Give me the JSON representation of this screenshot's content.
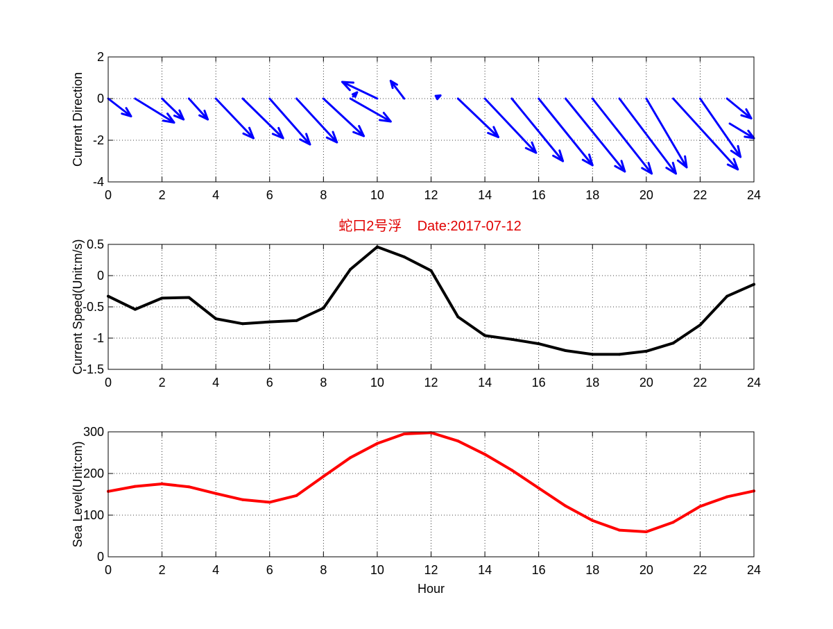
{
  "figure": {
    "title": "蛇口2号浮    Date:2017-07-12",
    "colors": {
      "title": "#e00000",
      "arrows": "#0000ff",
      "speed": "#000000",
      "sea_level": "#ff0000",
      "grid": "#000000"
    }
  },
  "chart_data": [
    {
      "type": "quiver",
      "ylabel": "Current Direction",
      "xlim": [
        0,
        24
      ],
      "ylim": [
        -4,
        2
      ],
      "xticks": [
        0,
        2,
        4,
        6,
        8,
        10,
        12,
        14,
        16,
        18,
        20,
        22,
        24
      ],
      "yticks": [
        2,
        0,
        -2,
        -4
      ],
      "grid": true,
      "color": "#0000ff",
      "vectors": [
        {
          "x": 0,
          "y": 0,
          "u": 0.85,
          "v": -0.85
        },
        {
          "x": 1,
          "y": 0,
          "u": 1.45,
          "v": -1.15
        },
        {
          "x": 2,
          "y": 0,
          "u": 0.8,
          "v": -1.0
        },
        {
          "x": 3,
          "y": 0,
          "u": 0.7,
          "v": -1.0
        },
        {
          "x": 4,
          "y": 0,
          "u": 1.4,
          "v": -1.9
        },
        {
          "x": 5,
          "y": 0,
          "u": 1.5,
          "v": -1.9
        },
        {
          "x": 6,
          "y": 0,
          "u": 1.5,
          "v": -2.2
        },
        {
          "x": 7,
          "y": 0,
          "u": 1.5,
          "v": -2.1
        },
        {
          "x": 8,
          "y": 0,
          "u": 1.5,
          "v": -1.8
        },
        {
          "x": 9,
          "y": 0,
          "u": 1.5,
          "v": -1.1
        },
        {
          "x": 9.1,
          "y": 0.1,
          "u": 0.15,
          "v": 0.2
        },
        {
          "x": 10,
          "y": 0,
          "u": -1.3,
          "v": 0.8
        },
        {
          "x": 11,
          "y": 0,
          "u": -0.5,
          "v": 0.85
        },
        {
          "x": 12.2,
          "y": 0.05,
          "u": 0.15,
          "v": 0.1
        },
        {
          "x": 13,
          "y": 0,
          "u": 1.5,
          "v": -1.85
        },
        {
          "x": 14,
          "y": 0,
          "u": 1.9,
          "v": -2.6
        },
        {
          "x": 15,
          "y": 0,
          "u": 1.9,
          "v": -3.0
        },
        {
          "x": 16,
          "y": 0,
          "u": 2.0,
          "v": -3.2
        },
        {
          "x": 17,
          "y": 0,
          "u": 2.2,
          "v": -3.5
        },
        {
          "x": 18,
          "y": 0,
          "u": 2.2,
          "v": -3.6
        },
        {
          "x": 19,
          "y": 0,
          "u": 2.1,
          "v": -3.6
        },
        {
          "x": 20,
          "y": 0,
          "u": 1.5,
          "v": -3.3
        },
        {
          "x": 21,
          "y": 0,
          "u": 2.4,
          "v": -3.4
        },
        {
          "x": 22,
          "y": 0,
          "u": 1.5,
          "v": -2.8
        },
        {
          "x": 23,
          "y": 0,
          "u": 0.9,
          "v": -0.95
        },
        {
          "x": 23.1,
          "y": -1.2,
          "u": 0.9,
          "v": -0.7
        }
      ]
    },
    {
      "type": "line",
      "ylabel": "Current Speed(Unit:m/s)",
      "xlim": [
        0,
        24
      ],
      "ylim": [
        -1.5,
        0.5
      ],
      "xticks": [
        0,
        2,
        4,
        6,
        8,
        10,
        12,
        14,
        16,
        18,
        20,
        22,
        24
      ],
      "yticks": [
        0.5,
        0,
        -0.5,
        -1,
        -1.5
      ],
      "yticklabels": [
        "0.5",
        "0",
        "-0.5",
        "-1",
        "-1.5"
      ],
      "grid": true,
      "series": [
        {
          "color": "#000000",
          "x": [
            0,
            1,
            2,
            3,
            4,
            5,
            6,
            7,
            8,
            9,
            10,
            11,
            12,
            13,
            14,
            15,
            16,
            17,
            18,
            19,
            20,
            21,
            22,
            23,
            24
          ],
          "y": [
            -0.33,
            -0.54,
            -0.36,
            -0.35,
            -0.69,
            -0.77,
            -0.74,
            -0.72,
            -0.52,
            0.1,
            0.46,
            0.3,
            0.08,
            -0.66,
            -0.96,
            -1.02,
            -1.09,
            -1.2,
            -1.26,
            -1.26,
            -1.21,
            -1.08,
            -0.79,
            -0.33,
            -0.14
          ]
        }
      ]
    },
    {
      "type": "line",
      "ylabel": "Sea Level(Unit:cm)",
      "xlabel": "Hour",
      "xlim": [
        0,
        24
      ],
      "ylim": [
        0,
        300
      ],
      "xticks": [
        0,
        2,
        4,
        6,
        8,
        10,
        12,
        14,
        16,
        18,
        20,
        22,
        24
      ],
      "yticks": [
        300,
        200,
        100,
        0
      ],
      "grid": true,
      "series": [
        {
          "color": "#ff0000",
          "x": [
            0,
            1,
            2,
            3,
            4,
            5,
            6,
            7,
            8,
            9,
            10,
            11,
            12,
            13,
            14,
            15,
            16,
            17,
            18,
            19,
            20,
            21,
            22,
            23,
            24
          ],
          "y": [
            157,
            169,
            175,
            168,
            152,
            137,
            131,
            147,
            193,
            238,
            272,
            295,
            298,
            278,
            246,
            208,
            165,
            122,
            87,
            64,
            60,
            83,
            121,
            144,
            158
          ]
        }
      ]
    }
  ]
}
